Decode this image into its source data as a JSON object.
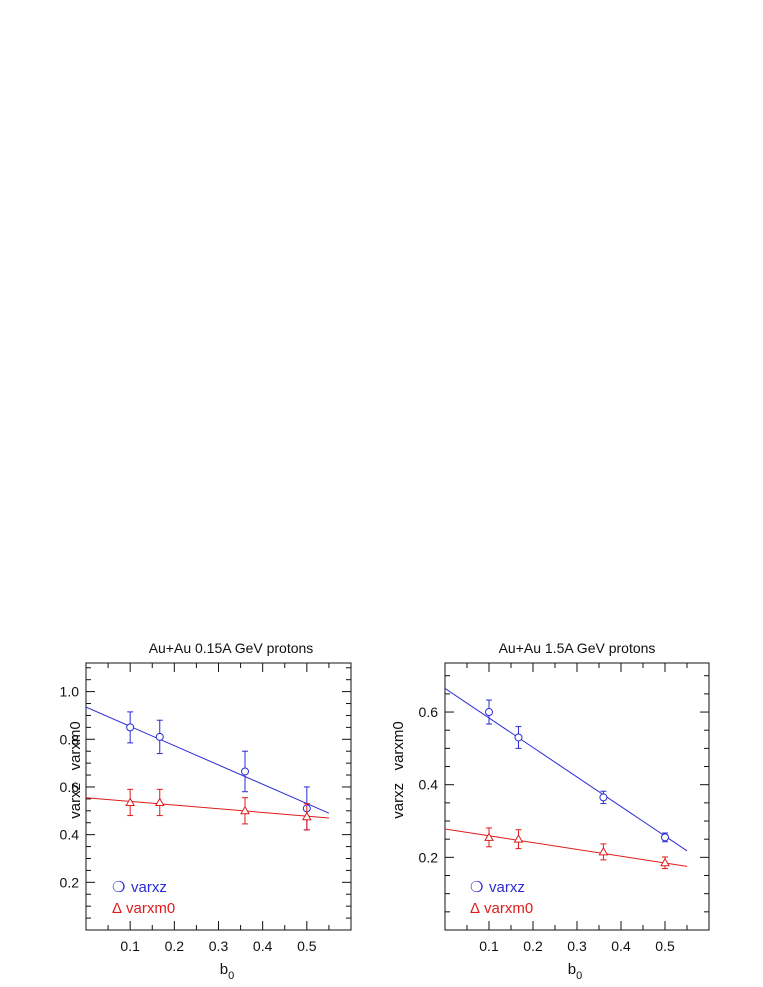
{
  "chart_data": [
    {
      "type": "scatter",
      "title": "Au+Au 0.15A GeV protons",
      "xlabel_main": "b",
      "xlabel_sub": "0",
      "ylabel": "varxz   varxm0",
      "xlim": [
        0.0,
        0.6
      ],
      "ylim": [
        0.0,
        1.12
      ],
      "xticks": [
        "0.1",
        "0.2",
        "0.3",
        "0.4",
        "0.5"
      ],
      "yticks": [
        "0.2",
        "0.4",
        "0.6",
        "0.8",
        "1.0"
      ],
      "xtick_values": [
        0.1,
        0.2,
        0.3,
        0.4,
        0.5
      ],
      "ytick_values": [
        0.2,
        0.4,
        0.6,
        0.8,
        1.0
      ],
      "x_minor_step": 0.05,
      "y_minor_step": 0.05,
      "series": [
        {
          "name": "varxz",
          "marker": "circle",
          "legend_symbol": "❍",
          "color": "#2b2bd6",
          "x": [
            0.1,
            0.167,
            0.36,
            0.5
          ],
          "y": [
            0.85,
            0.81,
            0.665,
            0.51
          ],
          "err": [
            0.065,
            0.07,
            0.085,
            0.09
          ],
          "fit": {
            "x": [
              0.0,
              0.55
            ],
            "y": [
              0.935,
              0.49
            ]
          }
        },
        {
          "name": "varxm0",
          "marker": "triangle",
          "legend_symbol": "Δ",
          "color": "#e01b1b",
          "x": [
            0.1,
            0.167,
            0.36,
            0.5
          ],
          "y": [
            0.535,
            0.535,
            0.5,
            0.475
          ],
          "err": [
            0.055,
            0.055,
            0.055,
            0.055
          ],
          "fit": {
            "x": [
              0.0,
              0.55
            ],
            "y": [
              0.555,
              0.47
            ]
          }
        }
      ]
    },
    {
      "type": "scatter",
      "title": "Au+Au 1.5A GeV protons",
      "xlabel_main": "b",
      "xlabel_sub": "0",
      "ylabel": "varxz   varxm0",
      "xlim": [
        0.0,
        0.6
      ],
      "ylim": [
        0.0,
        0.735
      ],
      "xticks": [
        "0.1",
        "0.2",
        "0.3",
        "0.4",
        "0.5"
      ],
      "yticks": [
        "0.2",
        "0.4",
        "0.6"
      ],
      "xtick_values": [
        0.1,
        0.2,
        0.3,
        0.4,
        0.5
      ],
      "ytick_values": [
        0.2,
        0.4,
        0.6
      ],
      "x_minor_step": 0.05,
      "y_minor_step": 0.05,
      "series": [
        {
          "name": "varxz",
          "marker": "circle",
          "legend_symbol": "❍",
          "color": "#2b2bd6",
          "x": [
            0.1,
            0.167,
            0.36,
            0.5
          ],
          "y": [
            0.6,
            0.53,
            0.365,
            0.255
          ],
          "err": [
            0.033,
            0.03,
            0.017,
            0.012
          ],
          "fit": {
            "x": [
              0.0,
              0.55
            ],
            "y": [
              0.665,
              0.218
            ]
          }
        },
        {
          "name": "varxm0",
          "marker": "triangle",
          "legend_symbol": "Δ",
          "color": "#e01b1b",
          "x": [
            0.1,
            0.167,
            0.36,
            0.5
          ],
          "y": [
            0.255,
            0.25,
            0.215,
            0.185
          ],
          "err": [
            0.026,
            0.026,
            0.022,
            0.016
          ],
          "fit": {
            "x": [
              0.0,
              0.55
            ],
            "y": [
              0.278,
              0.175
            ]
          }
        }
      ]
    }
  ]
}
